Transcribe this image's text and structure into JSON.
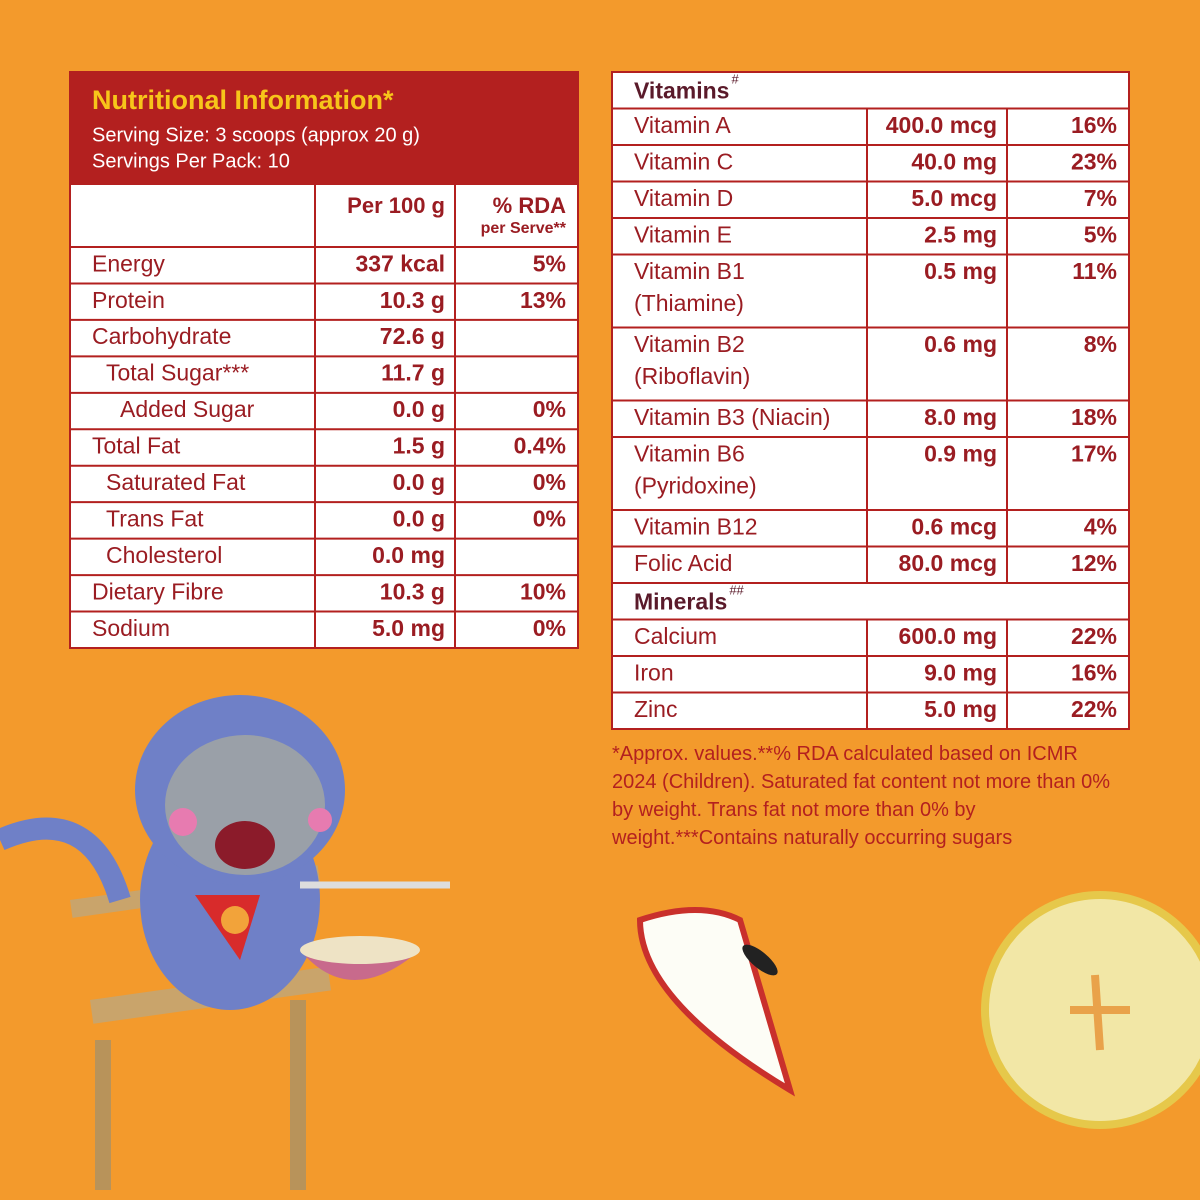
{
  "left": {
    "title": "Nutritional Information*",
    "serving_size": "Serving Size: 3 scoops (approx 20 g)",
    "servings_per_pack": "Servings Per Pack: 10",
    "col_per100": "Per 100 g",
    "col_rda": "% RDA",
    "col_rda_sub": "per Serve**",
    "rows": [
      {
        "label": "Energy",
        "per100": "337 kcal",
        "rda": "5%"
      },
      {
        "label": "Protein",
        "per100": "10.3 g",
        "rda": "13%"
      },
      {
        "label": "Carbohydrate",
        "per100": "72.6 g"
      },
      {
        "label": "Total Sugar***",
        "per100": "11.7 g"
      },
      {
        "label": "Added Sugar",
        "per100": "0.0 g",
        "rda": "0%"
      },
      {
        "label": "Total Fat",
        "per100": "1.5 g",
        "rda": "0.4%"
      },
      {
        "label": "Saturated Fat",
        "per100": "0.0 g",
        "rda": "0%"
      },
      {
        "label": "Trans Fat",
        "per100": "0.0 g",
        "rda": "0%"
      },
      {
        "label": "Cholesterol",
        "per100": "0.0 mg"
      },
      {
        "label": "Dietary Fibre",
        "per100": "10.3 g",
        "rda": "10%"
      },
      {
        "label": "Sodium",
        "per100": "5.0 mg",
        "rda": "0%"
      }
    ]
  },
  "right": {
    "sections": [
      {
        "title": "Vitamins",
        "mark": "#",
        "rows": [
          {
            "label": [
              "Vitamin A"
            ],
            "amount": "400.0 mcg",
            "rda": "16%"
          },
          {
            "label": [
              "Vitamin C"
            ],
            "amount": "40.0 mg",
            "rda": "23%"
          },
          {
            "label": [
              "Vitamin D"
            ],
            "amount": "5.0 mcg",
            "rda": "7%"
          },
          {
            "label": [
              "Vitamin E"
            ],
            "amount": "2.5 mg",
            "rda": "5%"
          },
          {
            "label": [
              "Vitamin B1",
              "(Thiamine)"
            ],
            "amount": "0.5 mg",
            "rda": "11%"
          },
          {
            "label": [
              "Vitamin B2",
              "(Riboflavin)"
            ],
            "amount": "0.6 mg",
            "rda": "8%"
          },
          {
            "label": [
              "Vitamin B3 (Niacin)"
            ],
            "amount": "8.0 mg",
            "rda": "18%"
          },
          {
            "label": [
              "Vitamin B6",
              "(Pyridoxine)"
            ],
            "amount": "0.9 mg",
            "rda": "17%"
          },
          {
            "label": [
              "Vitamin B12"
            ],
            "amount": "0.6 mcg",
            "rda": "4%"
          },
          {
            "label": [
              "Folic Acid"
            ],
            "amount": "80.0 mcg",
            "rda": "12%"
          }
        ]
      },
      {
        "title": "Minerals",
        "mark": "##",
        "rows": [
          {
            "label": [
              "Calcium"
            ],
            "amount": "600.0 mg",
            "rda": "22%"
          },
          {
            "label": [
              "Iron"
            ],
            "amount": "9.0 mg",
            "rda": "16%"
          },
          {
            "label": [
              "Zinc"
            ],
            "amount": "5.0 mg",
            "rda": "22%"
          }
        ]
      }
    ]
  },
  "footnote": "*Approx. values.**% RDA calculated based on ICMR 2024 (Children). Saturated fat content not more than 0% by weight. Trans fat not more than 0% by weight.***Contains naturally occurring sugars"
}
